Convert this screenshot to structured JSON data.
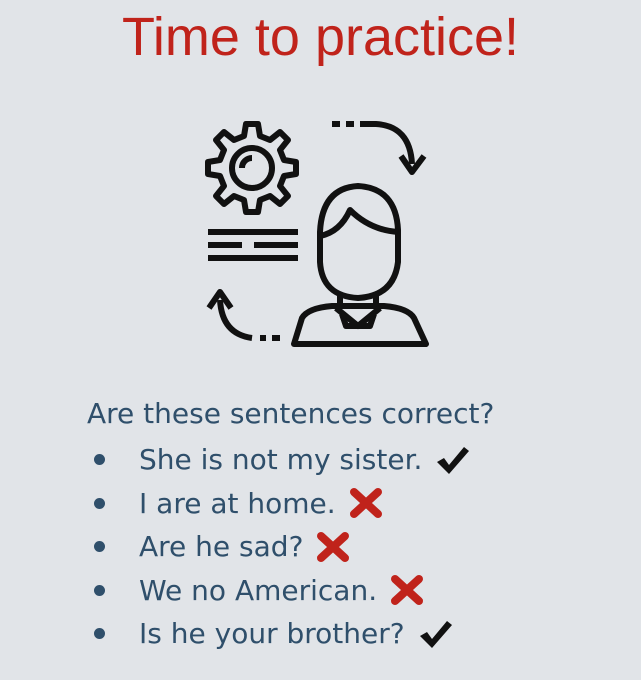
{
  "slide": {
    "title": "Time to practice!",
    "question": "Are these sentences correct?",
    "items": [
      {
        "text": "She is not my sister.",
        "mark": "check-icon",
        "correct": true
      },
      {
        "text": "I are at home.",
        "mark": "cross-icon",
        "correct": false
      },
      {
        "text": "Are he sad?",
        "mark": "cross-icon",
        "correct": false
      },
      {
        "text": "We no American.",
        "mark": "cross-icon",
        "correct": false
      },
      {
        "text": "Is he your brother?",
        "mark": "check-icon",
        "correct": true
      }
    ]
  },
  "colors": {
    "background": "#e1e4e8",
    "title": "#c0231b",
    "text": "#2f4f6b",
    "cross": "#c0231b",
    "check": "#111111"
  },
  "illustration": {
    "icons": [
      "gear-icon",
      "text-lines-icon",
      "arrow-loop-icon",
      "person-icon"
    ]
  }
}
